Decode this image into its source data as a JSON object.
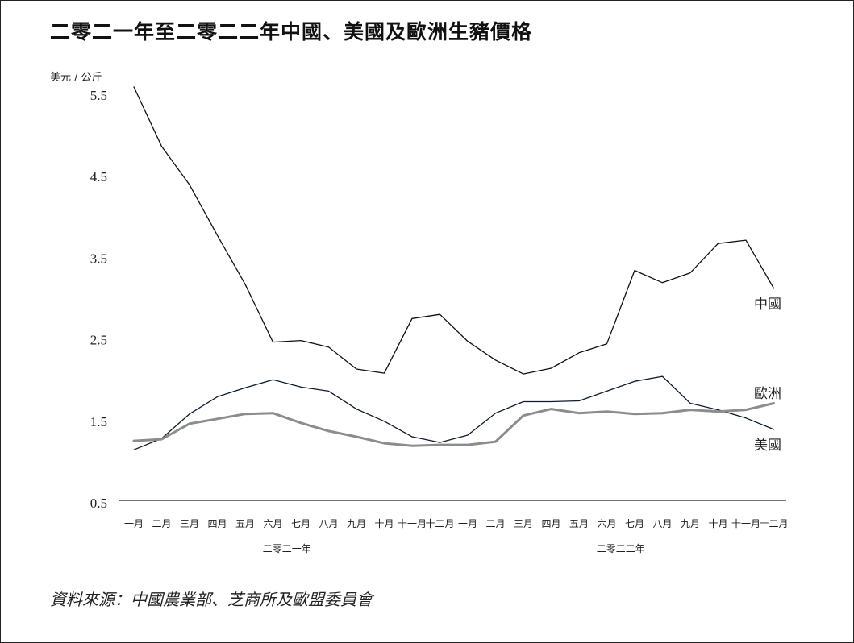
{
  "title": "二零二一年至二零二二年中國、美國及歐洲生豬價格",
  "source": "資料來源：中國農業部、芝商所及歐盟委員會",
  "chart_data": {
    "type": "line",
    "ylabel": "美元 / 公斤",
    "ylim": [
      0.5,
      5.5
    ],
    "yticks": [
      "5.5",
      "4.5",
      "3.5",
      "2.5",
      "1.5",
      "0.5"
    ],
    "categories": [
      "一月",
      "二月",
      "三月",
      "四月",
      "五月",
      "六月",
      "七月",
      "八月",
      "九月",
      "十月",
      "十一月",
      "十二月",
      "一月",
      "二月",
      "三月",
      "四月",
      "五月",
      "六月",
      "七月",
      "八月",
      "九月",
      "十月",
      "十一月",
      "十二月"
    ],
    "year_groups": [
      {
        "label": "二零二一年",
        "start": 0,
        "end": 11
      },
      {
        "label": "二零二二年",
        "start": 12,
        "end": 23
      }
    ],
    "series": [
      {
        "name": "中國",
        "color": "#111111",
        "width": 1.3,
        "values": [
          5.6,
          4.87,
          4.4,
          3.78,
          3.18,
          2.47,
          2.49,
          2.41,
          2.14,
          2.09,
          2.76,
          2.81,
          2.48,
          2.25,
          2.08,
          2.15,
          2.34,
          2.45,
          3.35,
          3.2,
          3.32,
          3.68,
          3.72,
          3.13
        ]
      },
      {
        "name": "美國",
        "color": "#0d1a2e",
        "width": 1.3,
        "values": [
          1.15,
          1.29,
          1.59,
          1.8,
          1.91,
          2.01,
          1.92,
          1.87,
          1.65,
          1.5,
          1.31,
          1.24,
          1.33,
          1.6,
          1.74,
          1.74,
          1.75,
          1.87,
          1.99,
          2.05,
          1.72,
          1.64,
          1.54,
          1.4
        ]
      },
      {
        "name": "歐洲",
        "color": "#8c8c8c",
        "width": 3,
        "values": [
          1.26,
          1.28,
          1.47,
          1.53,
          1.59,
          1.6,
          1.48,
          1.38,
          1.31,
          1.23,
          1.2,
          1.21,
          1.21,
          1.25,
          1.57,
          1.65,
          1.6,
          1.62,
          1.59,
          1.6,
          1.64,
          1.62,
          1.64,
          1.72
        ]
      }
    ]
  }
}
